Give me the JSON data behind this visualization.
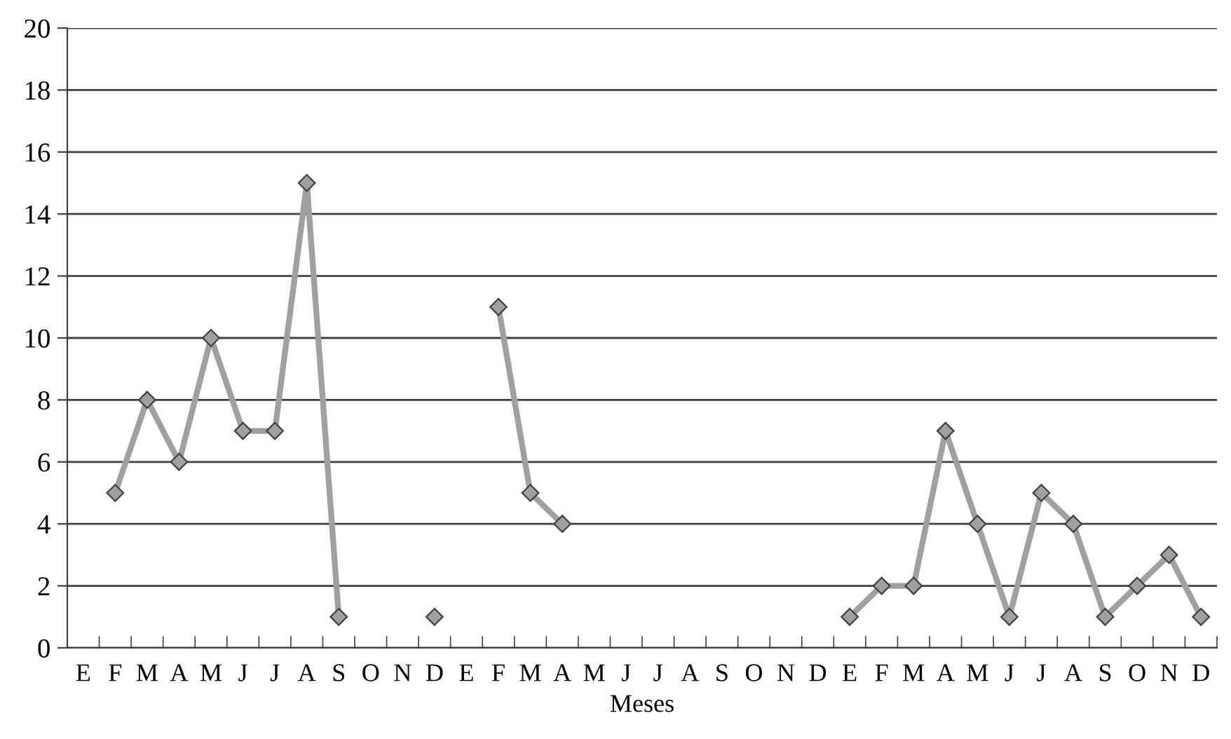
{
  "chart_data": {
    "type": "line",
    "xlabel": "Meses",
    "categories": [
      "E",
      "F",
      "M",
      "A",
      "M",
      "J",
      "J",
      "A",
      "S",
      "O",
      "N",
      "D",
      "E",
      "F",
      "M",
      "A",
      "M",
      "J",
      "J",
      "A",
      "S",
      "O",
      "N",
      "D",
      "E",
      "F",
      "M",
      "A",
      "M",
      "J",
      "J",
      "A",
      "S",
      "O",
      "N",
      "D"
    ],
    "series": [
      {
        "color": "#a0a0a0",
        "values": [
          null,
          5,
          8,
          6,
          10,
          7,
          7,
          15,
          1,
          null,
          null,
          1,
          null,
          11,
          5,
          4,
          null,
          null,
          null,
          null,
          null,
          null,
          null,
          null,
          1,
          2,
          2,
          7,
          4,
          1,
          5,
          4,
          1,
          2,
          3,
          1
        ]
      }
    ],
    "ylim": [
      0,
      20
    ],
    "yticks": [
      0,
      2,
      4,
      6,
      8,
      10,
      12,
      14,
      16,
      18,
      20
    ],
    "grid": "y",
    "marker": "diamond",
    "line_style": "solid"
  }
}
